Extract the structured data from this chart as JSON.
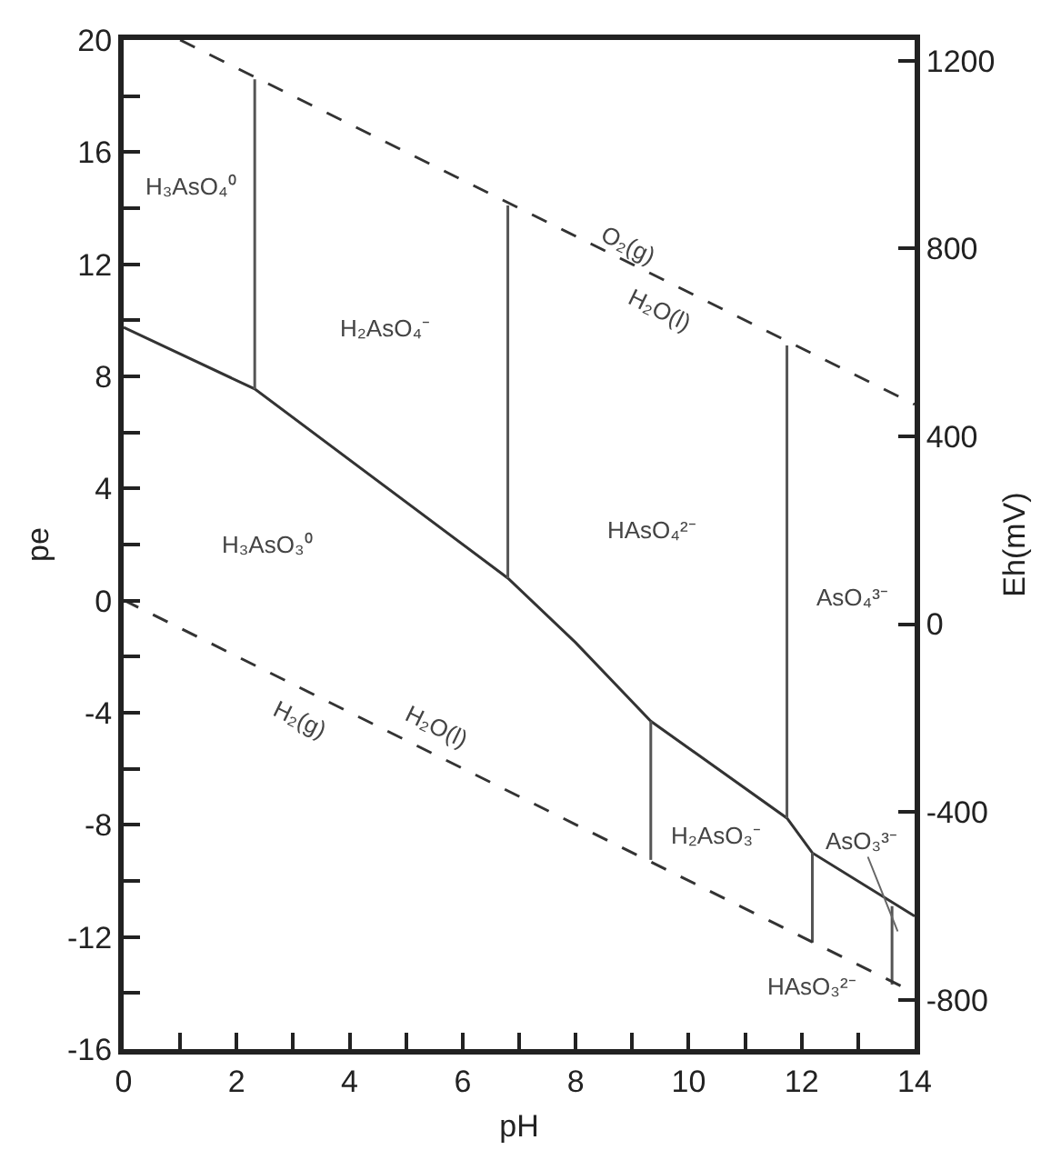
{
  "chart_data": {
    "type": "line",
    "xlabel": "pH",
    "ylabel": "pe",
    "y2label": "Eh(mV)",
    "xlim": [
      0,
      14
    ],
    "ylim": [
      -16,
      20
    ],
    "y2lim": [
      -905,
      1244
    ],
    "xticks": [
      0,
      {
        "value": 1,
        "label": null
      },
      2,
      {
        "value": 3,
        "label": null
      },
      4,
      {
        "value": 5,
        "label": null
      },
      6,
      {
        "value": 7,
        "label": null
      },
      8,
      {
        "value": 9,
        "label": null
      },
      10,
      {
        "value": 11,
        "label": null
      },
      12,
      {
        "value": 13,
        "label": null
      },
      14
    ],
    "yticks": [
      -16,
      {
        "value": -14,
        "label": null
      },
      -12,
      {
        "value": -10,
        "label": null
      },
      -8,
      {
        "value": -6,
        "label": null
      },
      -4,
      {
        "value": -2,
        "label": null
      },
      0,
      {
        "value": 2,
        "label": null
      },
      4,
      {
        "value": 6,
        "label": null
      },
      8,
      {
        "value": 10,
        "label": null
      },
      12,
      {
        "value": 14,
        "label": null
      },
      16,
      {
        "value": 18,
        "label": null
      },
      20
    ],
    "y2ticks": [
      -800,
      -400,
      0,
      400,
      800,
      1200
    ],
    "grid": false,
    "marker": "none",
    "series": [
      {
        "color": "#333333",
        "line_style": "dashed",
        "x": [
          1.0,
          14
        ],
        "values": [
          20,
          7
        ]
      },
      {
        "color": "#333333",
        "line_style": "dashed",
        "axis": "y2",
        "x": [
          0,
          14
        ],
        "values": [
          51,
          -785
        ]
      },
      {
        "color": "#333333",
        "line_style": "solid",
        "x": [
          0,
          2.32,
          6.8,
          8,
          9.33,
          11.74,
          12.19,
          14
        ],
        "values": [
          9.75,
          7.55,
          0.8,
          -1.5,
          -4.3,
          -7.76,
          -9.0,
          -11.26
        ]
      },
      {
        "color": "#555555",
        "line_style": "solid",
        "x": [
          2.32,
          2.32
        ],
        "values": [
          18.6,
          7.55
        ]
      },
      {
        "color": "#555555",
        "line_style": "solid",
        "x": [
          6.8,
          6.8
        ],
        "values": [
          14.1,
          0.8
        ]
      },
      {
        "color": "#555555",
        "line_style": "solid",
        "x": [
          11.74,
          11.74
        ],
        "values": [
          9.1,
          -7.76
        ]
      },
      {
        "color": "#555555",
        "line_style": "solid",
        "x": [
          9.33,
          9.33
        ],
        "values": [
          -4.3,
          -9.25
        ]
      },
      {
        "color": "#555555",
        "line_style": "solid",
        "x": [
          12.19,
          12.19
        ],
        "values": [
          -9.0,
          -12.2
        ]
      },
      {
        "color": "#555555",
        "line_style": "solid",
        "x": [
          13.6,
          13.6
        ],
        "values": [
          -10.9,
          -13.7
        ]
      }
    ],
    "annotations": [
      "H₃AsO₄⁰",
      "H₂AsO₄⁻",
      "H₃AsO₃⁰",
      "HAsO₄²⁻",
      "AsO₄³⁻",
      "H₂AsO₃⁻",
      {
        "text": "AsO₃³⁻",
        "x": 13.7,
        "y": -11.8
      },
      "HAsO₃²⁻",
      "O₂(g)",
      "H₂O(l)",
      "H₂(g)",
      "H₂O(l)"
    ]
  }
}
